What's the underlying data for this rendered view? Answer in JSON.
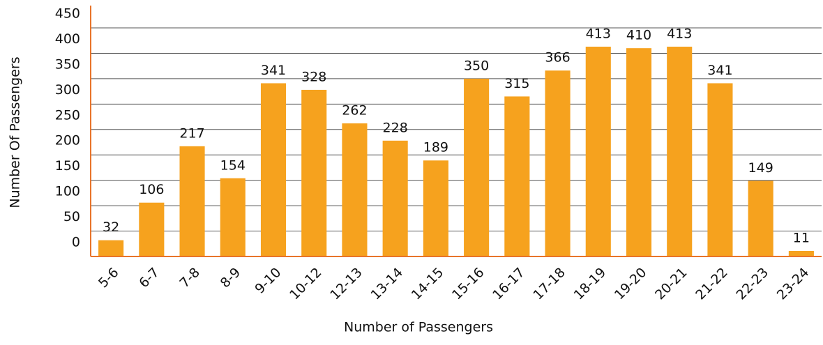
{
  "chart_data": {
    "type": "bar",
    "xlabel": "Number of Passengers",
    "ylabel": "Number Of Passengers",
    "categories": [
      "5-6",
      "6-7",
      "7-8",
      "8-9",
      "9-10",
      "10-12",
      "12-13",
      "13-14",
      "14-15",
      "15-16",
      "16-17",
      "17-18",
      "18-19",
      "19-20",
      "20-21",
      "21-22",
      "22-23",
      "23-24"
    ],
    "values": [
      32,
      106,
      217,
      154,
      341,
      328,
      262,
      228,
      189,
      350,
      315,
      366,
      413,
      410,
      413,
      341,
      149,
      11
    ],
    "color": "#f6a21e",
    "ylim": [
      0,
      450
    ],
    "yticks": [
      0,
      50,
      100,
      150,
      200,
      250,
      300,
      350,
      400,
      450
    ],
    "grid": true
  }
}
